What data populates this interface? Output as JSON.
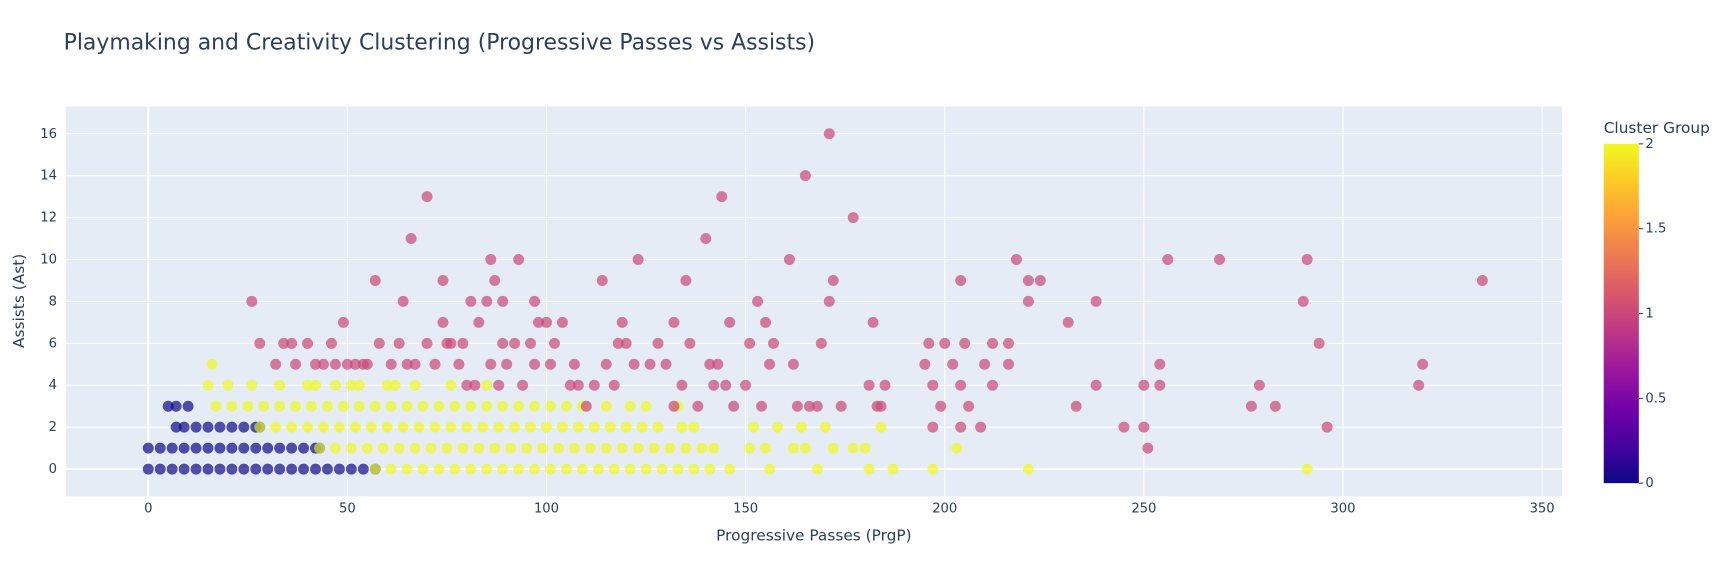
{
  "chart_data": {
    "type": "scatter",
    "title": "Playmaking and Creativity Clustering (Progressive Passes vs Assists)",
    "x_label": "Progressive Passes (PrgP)",
    "y_label": "Assists (Ast)",
    "xlim": [
      -20.7,
      355
    ],
    "ylim": [
      -1.3,
      17.3
    ],
    "xticks": [
      0,
      50,
      100,
      150,
      200,
      250,
      300,
      350
    ],
    "yticks": [
      0,
      2,
      4,
      6,
      8,
      10,
      12,
      14,
      16
    ],
    "grid": true,
    "marker_opacity": 0.7,
    "colorscale": [
      "#0d0887",
      "#46039f",
      "#7201a8",
      "#9c179e",
      "#bd3786",
      "#d8576b",
      "#ed7953",
      "#fb9f3a",
      "#fdca26",
      "#f0f921"
    ],
    "colorbar": {
      "title": "Cluster Group",
      "lim": [
        0,
        2
      ],
      "ticks": [
        0,
        0.5,
        1,
        1.5,
        2
      ]
    },
    "series": [
      {
        "cluster": 0,
        "x": [
          0,
          3,
          6,
          9,
          12,
          15,
          18,
          21,
          24,
          27,
          30,
          33,
          36,
          39,
          42,
          45,
          48,
          51,
          54,
          57,
          0,
          3,
          6,
          9,
          12,
          15,
          18,
          21,
          24,
          27,
          30,
          33,
          36,
          39,
          42,
          43,
          7,
          9,
          12,
          15,
          18,
          21,
          24,
          27,
          28,
          5,
          7,
          10
        ],
        "y": [
          0,
          0,
          0,
          0,
          0,
          0,
          0,
          0,
          0,
          0,
          0,
          0,
          0,
          0,
          0,
          0,
          0,
          0,
          0,
          0,
          1,
          1,
          1,
          1,
          1,
          1,
          1,
          1,
          1,
          1,
          1,
          1,
          1,
          1,
          1,
          1,
          2,
          2,
          2,
          2,
          2,
          2,
          2,
          2,
          2,
          3,
          3,
          3
        ]
      },
      {
        "cluster": 2,
        "x": [
          57,
          61,
          65,
          69,
          73,
          77,
          81,
          85,
          89,
          93,
          97,
          101,
          105,
          109,
          113,
          117,
          121,
          125,
          129,
          133,
          137,
          141,
          146,
          156,
          168,
          181,
          187,
          197,
          221,
          291,
          43,
          47,
          51,
          55,
          59,
          63,
          67,
          71,
          75,
          79,
          83,
          87,
          91,
          95,
          99,
          103,
          107,
          111,
          115,
          119,
          123,
          127,
          131,
          135,
          139,
          142,
          151,
          155,
          162,
          165,
          172,
          177,
          180,
          203,
          28,
          32,
          36,
          40,
          44,
          48,
          52,
          56,
          60,
          64,
          68,
          72,
          76,
          80,
          84,
          88,
          92,
          96,
          100,
          104,
          108,
          112,
          116,
          120,
          124,
          128,
          134,
          137,
          152,
          158,
          164,
          170,
          184,
          17,
          21,
          25,
          29,
          33,
          37,
          41,
          45,
          49,
          53,
          57,
          61,
          65,
          69,
          73,
          77,
          81,
          85,
          89,
          93,
          97,
          101,
          105,
          109,
          115,
          121,
          125,
          133,
          15,
          20,
          26,
          33,
          40,
          42,
          47,
          51,
          53,
          60,
          62,
          67,
          76,
          85,
          16
        ],
        "y": [
          0,
          0,
          0,
          0,
          0,
          0,
          0,
          0,
          0,
          0,
          0,
          0,
          0,
          0,
          0,
          0,
          0,
          0,
          0,
          0,
          0,
          0,
          0,
          0,
          0,
          0,
          0,
          0,
          0,
          0,
          1,
          1,
          1,
          1,
          1,
          1,
          1,
          1,
          1,
          1,
          1,
          1,
          1,
          1,
          1,
          1,
          1,
          1,
          1,
          1,
          1,
          1,
          1,
          1,
          1,
          1,
          1,
          1,
          1,
          1,
          1,
          1,
          1,
          1,
          2,
          2,
          2,
          2,
          2,
          2,
          2,
          2,
          2,
          2,
          2,
          2,
          2,
          2,
          2,
          2,
          2,
          2,
          2,
          2,
          2,
          2,
          2,
          2,
          2,
          2,
          2,
          2,
          2,
          2,
          2,
          2,
          2,
          3,
          3,
          3,
          3,
          3,
          3,
          3,
          3,
          3,
          3,
          3,
          3,
          3,
          3,
          3,
          3,
          3,
          3,
          3,
          3,
          3,
          3,
          3,
          3,
          3,
          3,
          3,
          3,
          4,
          4,
          4,
          4,
          4,
          4,
          4,
          4,
          4,
          4,
          4,
          4,
          4,
          4,
          5
        ]
      },
      {
        "cluster": 1,
        "x": [
          26,
          28,
          32,
          34,
          36,
          37,
          40,
          42,
          44,
          46,
          47,
          49,
          50,
          52,
          54,
          55,
          57,
          58,
          61,
          63,
          64,
          65,
          66,
          67,
          70,
          70,
          72,
          74,
          74,
          75,
          76,
          78,
          79,
          80,
          81,
          82,
          83,
          85,
          86,
          86,
          87,
          88,
          89,
          89,
          90,
          92,
          93,
          94,
          96,
          97,
          97,
          98,
          100,
          101,
          102,
          104,
          106,
          107,
          108,
          110,
          112,
          114,
          115,
          117,
          118,
          119,
          120,
          122,
          123,
          126,
          128,
          130,
          132,
          132,
          134,
          135,
          136,
          138,
          140,
          141,
          142,
          143,
          144,
          145,
          146,
          147,
          150,
          151,
          153,
          154,
          155,
          156,
          157,
          161,
          162,
          163,
          165,
          166,
          168,
          169,
          171,
          171,
          172,
          174,
          177,
          181,
          182,
          184,
          185,
          195,
          196,
          197,
          199,
          200,
          202,
          204,
          204,
          206,
          209,
          210,
          212,
          212,
          216,
          216,
          218,
          221,
          221,
          224,
          231,
          233,
          238,
          238,
          245,
          250,
          250,
          251,
          254,
          254,
          256,
          269,
          277,
          279,
          283,
          290,
          291,
          294,
          296,
          319,
          320,
          335,
          197,
          204,
          205,
          183
        ],
        "y": [
          8,
          6,
          5,
          6,
          6,
          5,
          6,
          5,
          5,
          6,
          5,
          7,
          5,
          5,
          5,
          5,
          9,
          6,
          5,
          6,
          8,
          5,
          11,
          5,
          13,
          6,
          5,
          9,
          7,
          6,
          6,
          5,
          6,
          4,
          8,
          4,
          7,
          8,
          5,
          10,
          9,
          4,
          8,
          6,
          5,
          6,
          10,
          4,
          6,
          5,
          8,
          7,
          7,
          5,
          6,
          7,
          4,
          5,
          4,
          3,
          4,
          9,
          5,
          4,
          6,
          7,
          6,
          5,
          10,
          5,
          6,
          5,
          7,
          3,
          4,
          9,
          6,
          3,
          11,
          5,
          4,
          5,
          13,
          4,
          7,
          3,
          4,
          6,
          8,
          3,
          7,
          5,
          6,
          10,
          5,
          3,
          14,
          3,
          3,
          6,
          16,
          8,
          9,
          3,
          12,
          4,
          7,
          3,
          4,
          5,
          6,
          4,
          3,
          6,
          5,
          9,
          4,
          3,
          2,
          5,
          6,
          4,
          6,
          5,
          10,
          9,
          8,
          9,
          7,
          3,
          8,
          4,
          2,
          4,
          2,
          1,
          5,
          4,
          10,
          10,
          3,
          4,
          3,
          8,
          10,
          6,
          2,
          4,
          5,
          9,
          2,
          2,
          6,
          3
        ]
      }
    ]
  }
}
